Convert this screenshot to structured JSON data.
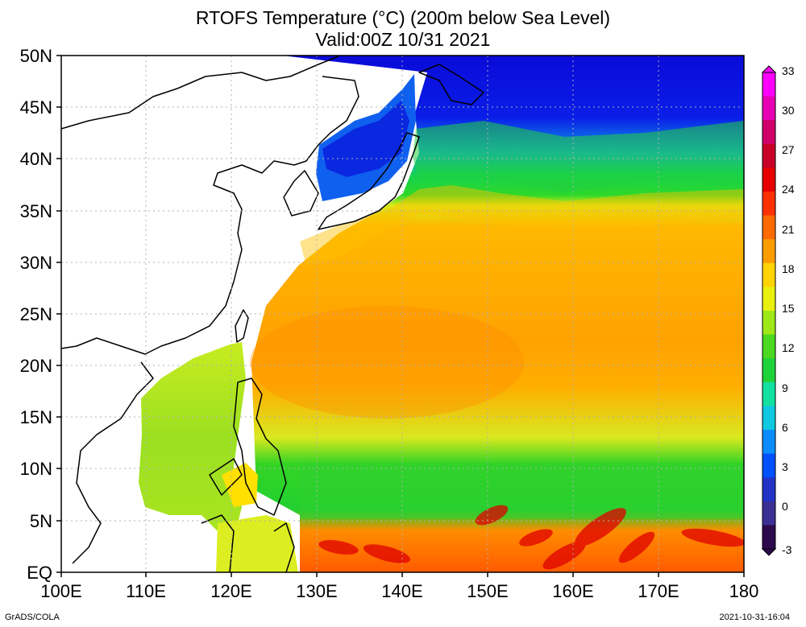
{
  "title_line1": "RTOFS Temperature (°C) (200m below Sea Level)",
  "title_line2": "Valid:00Z 10/31 2021",
  "lat_labels": [
    "50N",
    "45N",
    "40N",
    "35N",
    "30N",
    "25N",
    "20N",
    "15N",
    "10N",
    "5N",
    "EQ"
  ],
  "lon_labels": [
    "100E",
    "110E",
    "120E",
    "130E",
    "140E",
    "150E",
    "160E",
    "170E",
    "180"
  ],
  "colorbar": {
    "labels": [
      "33",
      "30",
      "27",
      "24",
      "21",
      "18",
      "15",
      "12",
      "9",
      "6",
      "3",
      "0",
      "-3"
    ],
    "colors": [
      "#2d0a4e",
      "#3b2f96",
      "#2233c8",
      "#0050ff",
      "#0a8cff",
      "#10c8e0",
      "#12e0a0",
      "#1ed23a",
      "#4cd820",
      "#9ee818",
      "#e8f010",
      "#ffd400",
      "#ff9c00",
      "#ff6a00",
      "#ff3000",
      "#e60000",
      "#c80028",
      "#d0006a",
      "#e800b4",
      "#ff00ff"
    ]
  },
  "credit": "GrADS/COLA",
  "timestamp": "2021-10-31-16:04"
}
